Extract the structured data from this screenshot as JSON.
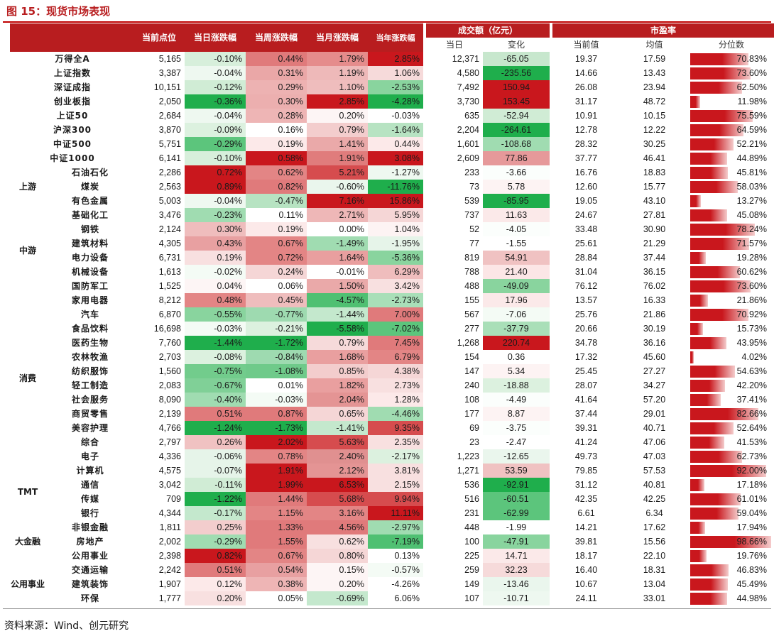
{
  "title": "图 15：现货市场表现",
  "source": "资料来源：Wind、创元研究",
  "headers": {
    "close": "当前点位",
    "day": "当日涨跌幅",
    "week": "当周涨跌幅",
    "month": "当月涨跌幅",
    "ytd": "当年涨跌幅",
    "turnover": "成交额（亿元）",
    "turnover_today": "当日",
    "turnover_change": "变化",
    "pe": "市盈率",
    "pe_current": "当前值",
    "pe_mean": "均值",
    "pe_pct": "分位数"
  },
  "groups": [
    {
      "label": "上游",
      "start": 8,
      "span": 3
    },
    {
      "label": "中游",
      "start": 11,
      "span": 6
    },
    {
      "label": "消费",
      "start": 17,
      "span": 12
    },
    {
      "label": "TMT",
      "start": 29,
      "span": 4
    },
    {
      "label": "大金融",
      "start": 33,
      "span": 3
    },
    {
      "label": "公用事业",
      "start": 36,
      "span": 4
    }
  ],
  "rows": [
    {
      "name": "万得全A",
      "close": "5,165",
      "day": "-0.10%",
      "week": "0.44%",
      "month": "1.79%",
      "ytd": "2.85%",
      "turnover": "12,371",
      "change": "-65.05",
      "pe": "19.37",
      "pe_mean": "17.59",
      "pct": "70.83%",
      "pct_value": 70.83,
      "colors": {
        "day": "#d7efdb",
        "week": "#e07a7b",
        "month": "#e58c8c",
        "ytd": "#c9171d",
        "change": "#c7e7cd"
      }
    },
    {
      "name": "上证指数",
      "close": "3,387",
      "day": "-0.04%",
      "week": "0.31%",
      "month": "1.19%",
      "ytd": "1.06%",
      "turnover": "4,580",
      "change": "-235.56",
      "pe": "14.66",
      "pe_mean": "13.43",
      "pct": "73.60%",
      "pct_value": 73.6,
      "colors": {
        "day": "#eef8f0",
        "week": "#eaa7a7",
        "month": "#eeb9b9",
        "ytd": "#f6dada",
        "change": "#1fae4c"
      }
    },
    {
      "name": "深证成指",
      "close": "10,151",
      "day": "-0.12%",
      "week": "0.29%",
      "month": "1.10%",
      "ytd": "-2.53%",
      "turnover": "7,492",
      "change": "150.94",
      "pe": "26.08",
      "pe_mean": "23.94",
      "pct": "62.50%",
      "pct_value": 62.5,
      "colors": {
        "day": "#d0ecd5",
        "week": "#edb2b2",
        "month": "#efbdbd",
        "ytd": "#89d49e",
        "change": "#c9171d"
      }
    },
    {
      "name": "创业板指",
      "close": "2,050",
      "day": "-0.36%",
      "week": "0.30%",
      "month": "2.85%",
      "ytd": "-4.28%",
      "turnover": "3,730",
      "change": "153.45",
      "pe": "31.17",
      "pe_mean": "48.72",
      "pct": "11.98%",
      "pct_value": 11.98,
      "colors": {
        "day": "#1fae4c",
        "week": "#ecafaf",
        "month": "#c9171d",
        "ytd": "#1fae4c",
        "change": "#c9171d"
      }
    },
    {
      "name": "上证50",
      "close": "2,684",
      "day": "-0.04%",
      "week": "0.28%",
      "month": "0.20%",
      "ytd": "-0.03%",
      "turnover": "635",
      "change": "-52.94",
      "pe": "10.91",
      "pe_mean": "10.15",
      "pct": "75.59%",
      "pct_value": 75.59,
      "colors": {
        "day": "#eef8f0",
        "week": "#eeb5b5",
        "month": "#fdf5f5",
        "ytd": "#ffffff",
        "change": "#d0ecd5"
      }
    },
    {
      "name": "沪深300",
      "close": "3,870",
      "day": "-0.09%",
      "week": "0.16%",
      "month": "0.79%",
      "ytd": "-1.64%",
      "turnover": "2,204",
      "change": "-264.61",
      "pe": "12.78",
      "pe_mean": "12.22",
      "pct": "64.59%",
      "pct_value": 64.59,
      "colors": {
        "day": "#dcf1df",
        "week": "#ffffff",
        "month": "#f3cdcd",
        "ytd": "#b7e3c2",
        "change": "#1fae4c"
      }
    },
    {
      "name": "中证500",
      "close": "5,751",
      "day": "-0.29%",
      "week": "0.19%",
      "month": "1.41%",
      "ytd": "0.44%",
      "turnover": "1,601",
      "change": "-108.68",
      "pe": "28.32",
      "pe_mean": "30.25",
      "pct": "52.21%",
      "pct_value": 52.21,
      "colors": {
        "day": "#5cc57c",
        "week": "#fce9e9",
        "month": "#eaa9a9",
        "ytd": "#fce9e9",
        "change": "#a0dcb1"
      }
    },
    {
      "name": "中证1000",
      "close": "6,141",
      "day": "-0.10%",
      "week": "0.58%",
      "month": "1.91%",
      "ytd": "3.08%",
      "turnover": "2,609",
      "change": "77.86",
      "pe": "37.77",
      "pe_mean": "46.41",
      "pct": "44.89%",
      "pct_value": 44.89,
      "colors": {
        "day": "#d7efdb",
        "week": "#c9171d",
        "month": "#e07c7c",
        "ytd": "#c9171d",
        "change": "#e6999a"
      }
    },
    {
      "name": "石油石化",
      "close": "2,286",
      "day": "0.72%",
      "week": "0.62%",
      "month": "5.21%",
      "ytd": "-1.27%",
      "turnover": "233",
      "change": "-3.66",
      "pe": "16.76",
      "pe_mean": "18.83",
      "pct": "45.81%",
      "pct_value": 45.81,
      "colors": {
        "day": "#c9171d",
        "week": "#e38585",
        "month": "#d64c4e",
        "ytd": "#eef8f0",
        "change": "#fbfefc"
      }
    },
    {
      "name": "煤炭",
      "close": "2,563",
      "day": "0.89%",
      "week": "0.82%",
      "month": "-0.60%",
      "ytd": "-11.76%",
      "turnover": "73",
      "change": "5.78",
      "pe": "12.60",
      "pe_mean": "15.77",
      "pct": "58.03%",
      "pct_value": 58.03,
      "colors": {
        "day": "#c9171d",
        "week": "#e07a7b",
        "month": "#eaf6ed",
        "ytd": "#1fae4c",
        "change": "#fdf3f3"
      }
    },
    {
      "name": "有色金属",
      "close": "5,003",
      "day": "-0.04%",
      "week": "-0.47%",
      "month": "7.16%",
      "ytd": "15.86%",
      "turnover": "539",
      "change": "-85.95",
      "pe": "19.05",
      "pe_mean": "43.10",
      "pct": "13.27%",
      "pct_value": 13.27,
      "colors": {
        "day": "#eef8f0",
        "week": "#b7e3c2",
        "month": "#c9171d",
        "ytd": "#c9171d",
        "change": "#1fae4c"
      }
    },
    {
      "name": "基础化工",
      "close": "3,476",
      "day": "-0.23%",
      "week": "0.11%",
      "month": "2.71%",
      "ytd": "5.95%",
      "turnover": "737",
      "change": "11.63",
      "pe": "24.67",
      "pe_mean": "27.81",
      "pct": "45.08%",
      "pct_value": 45.08,
      "colors": {
        "day": "#a0dcb1",
        "week": "#ffffff",
        "month": "#eeb7b7",
        "ytd": "#f5d6d6",
        "change": "#fbe9e9"
      }
    },
    {
      "name": "钢铁",
      "close": "2,124",
      "day": "0.30%",
      "week": "0.19%",
      "month": "0.00%",
      "ytd": "1.04%",
      "turnover": "52",
      "change": "-4.05",
      "pe": "33.48",
      "pe_mean": "30.90",
      "pct": "78.24%",
      "pct_value": 78.24,
      "colors": {
        "day": "#efbdbd",
        "week": "#fce9e9",
        "month": "#ffffff",
        "ytd": "#fdf3f3",
        "change": "#fbfefc"
      }
    },
    {
      "name": "建筑材料",
      "close": "4,305",
      "day": "0.43%",
      "week": "0.67%",
      "month": "-1.49%",
      "ytd": "-1.95%",
      "turnover": "77",
      "change": "-1.55",
      "pe": "25.61",
      "pe_mean": "21.29",
      "pct": "71.57%",
      "pct_value": 71.57,
      "colors": {
        "day": "#e8a0a1",
        "week": "#e38585",
        "month": "#a0dcb1",
        "ytd": "#e6f4e9",
        "change": "#ffffff"
      }
    },
    {
      "name": "电力设备",
      "close": "6,731",
      "day": "0.19%",
      "week": "0.72%",
      "month": "1.64%",
      "ytd": "-5.36%",
      "turnover": "819",
      "change": "54.91",
      "pe": "28.84",
      "pe_mean": "37.44",
      "pct": "19.28%",
      "pct_value": 19.28,
      "colors": {
        "day": "#f8e0e0",
        "week": "#e38585",
        "month": "#e99f9f",
        "ytd": "#89d49e",
        "change": "#f0c2c2"
      }
    },
    {
      "name": "机械设备",
      "close": "1,613",
      "day": "-0.02%",
      "week": "0.24%",
      "month": "-0.01%",
      "ytd": "6.29%",
      "turnover": "788",
      "change": "21.40",
      "pe": "31.04",
      "pe_mean": "36.15",
      "pct": "60.62%",
      "pct_value": 60.62,
      "colors": {
        "day": "#f4fbf5",
        "week": "#f5d6d6",
        "month": "#ffffff",
        "ytd": "#efbdbd",
        "change": "#fce6e6"
      }
    },
    {
      "name": "国防军工",
      "close": "1,525",
      "day": "0.04%",
      "week": "0.06%",
      "month": "1.50%",
      "ytd": "3.42%",
      "turnover": "488",
      "change": "-49.09",
      "pe": "76.12",
      "pe_mean": "76.02",
      "pct": "73.60%",
      "pct_value": 73.6,
      "colors": {
        "day": "#fdf5f5",
        "week": "#ffffff",
        "month": "#eaa9a9",
        "ytd": "#f8e0e0",
        "change": "#89d49e"
      }
    },
    {
      "name": "家用电器",
      "close": "8,212",
      "day": "0.48%",
      "week": "0.45%",
      "month": "-4.57%",
      "ytd": "-2.73%",
      "turnover": "155",
      "change": "17.96",
      "pe": "13.57",
      "pe_mean": "16.33",
      "pct": "21.86%",
      "pct_value": 21.86,
      "colors": {
        "day": "#e38585",
        "week": "#efbdbd",
        "month": "#4fc072",
        "ytd": "#a9dfb8",
        "change": "#fbe9e9"
      }
    },
    {
      "name": "汽车",
      "close": "6,870",
      "day": "-0.55%",
      "week": "-0.77%",
      "month": "-1.44%",
      "ytd": "7.00%",
      "turnover": "567",
      "change": "-7.06",
      "pe": "25.76",
      "pe_mean": "21.86",
      "pct": "70.92%",
      "pct_value": 70.92,
      "colors": {
        "day": "#89d49e",
        "week": "#9edab0",
        "month": "#c4e8cd",
        "ytd": "#e07a7b",
        "change": "#f4fbf5"
      }
    },
    {
      "name": "食品饮料",
      "close": "16,698",
      "day": "-0.03%",
      "week": "-0.21%",
      "month": "-5.58%",
      "ytd": "-7.02%",
      "turnover": "277",
      "change": "-37.79",
      "pe": "20.66",
      "pe_mean": "30.19",
      "pct": "15.73%",
      "pct_value": 15.73,
      "colors": {
        "day": "#f4fbf5",
        "week": "#dcf1df",
        "month": "#1fae4c",
        "ytd": "#5cc57c",
        "change": "#a9dfb8"
      }
    },
    {
      "name": "医药生物",
      "close": "7,760",
      "day": "-1.44%",
      "week": "-1.72%",
      "month": "0.79%",
      "ytd": "7.45%",
      "turnover": "1,268",
      "change": "220.74",
      "pe": "34.78",
      "pe_mean": "36.16",
      "pct": "43.95%",
      "pct_value": 43.95,
      "colors": {
        "day": "#1fae4c",
        "week": "#1fae4c",
        "month": "#f6dada",
        "ytd": "#e07a7b",
        "change": "#c9171d"
      }
    },
    {
      "name": "农林牧渔",
      "close": "2,703",
      "day": "-0.08%",
      "week": "-0.84%",
      "month": "1.68%",
      "ytd": "6.79%",
      "turnover": "154",
      "change": "0.36",
      "pe": "17.32",
      "pe_mean": "45.60",
      "pct": "4.02%",
      "pct_value": 4.02,
      "colors": {
        "day": "#dcf1df",
        "week": "#9edab0",
        "month": "#e99f9f",
        "ytd": "#e38585",
        "change": "#ffffff"
      }
    },
    {
      "name": "纺织服饰",
      "close": "1,560",
      "day": "-0.75%",
      "week": "-1.08%",
      "month": "0.85%",
      "ytd": "4.38%",
      "turnover": "147",
      "change": "5.34",
      "pe": "25.45",
      "pe_mean": "27.27",
      "pct": "54.63%",
      "pct_value": 54.63,
      "colors": {
        "day": "#72cc8c",
        "week": "#6fca8a",
        "month": "#f3cdcd",
        "ytd": "#f5d6d6",
        "change": "#fdf3f3"
      }
    },
    {
      "name": "轻工制造",
      "close": "2,083",
      "day": "-0.67%",
      "week": "0.01%",
      "month": "1.82%",
      "ytd": "2.73%",
      "turnover": "240",
      "change": "-18.88",
      "pe": "28.07",
      "pe_mean": "34.27",
      "pct": "42.20%",
      "pct_value": 42.2,
      "colors": {
        "day": "#80d097",
        "week": "#ffffff",
        "month": "#e99f9f",
        "ytd": "#f8e0e0",
        "change": "#dcf1df"
      }
    },
    {
      "name": "社会服务",
      "close": "8,090",
      "day": "-0.40%",
      "week": "-0.03%",
      "month": "2.04%",
      "ytd": "1.28%",
      "turnover": "108",
      "change": "-4.49",
      "pe": "41.64",
      "pe_mean": "57.20",
      "pct": "37.41%",
      "pct_value": 37.41,
      "colors": {
        "day": "#a0dcb1",
        "week": "#f4fbf5",
        "month": "#e49494",
        "ytd": "#fce9e9",
        "change": "#fbfefc"
      }
    },
    {
      "name": "商贸零售",
      "close": "2,139",
      "day": "0.51%",
      "week": "0.87%",
      "month": "0.65%",
      "ytd": "-4.46%",
      "turnover": "177",
      "change": "8.87",
      "pe": "37.44",
      "pe_mean": "29.01",
      "pct": "82.66%",
      "pct_value": 82.66,
      "colors": {
        "day": "#e07a7b",
        "week": "#e07a7b",
        "month": "#f5d6d6",
        "ytd": "#a0dcb1",
        "change": "#fdf3f3"
      }
    },
    {
      "name": "美容护理",
      "close": "4,766",
      "day": "-1.24%",
      "week": "-1.73%",
      "month": "-1.41%",
      "ytd": "9.35%",
      "turnover": "69",
      "change": "-3.75",
      "pe": "39.31",
      "pe_mean": "40.71",
      "pct": "52.64%",
      "pct_value": 52.64,
      "colors": {
        "day": "#1fae4c",
        "week": "#1fae4c",
        "month": "#c4e8cd",
        "ytd": "#d64c4e",
        "change": "#fbfefc"
      }
    },
    {
      "name": "综合",
      "close": "2,797",
      "day": "0.26%",
      "week": "2.02%",
      "month": "5.63%",
      "ytd": "2.35%",
      "turnover": "23",
      "change": "-2.47",
      "pe": "41.24",
      "pe_mean": "47.06",
      "pct": "41.53%",
      "pct_value": 41.53,
      "colors": {
        "day": "#f0c2c2",
        "week": "#c9171d",
        "month": "#d64c4e",
        "ytd": "#f8e0e0",
        "change": "#ffffff"
      }
    },
    {
      "name": "电子",
      "close": "4,336",
      "day": "-0.06%",
      "week": "0.78%",
      "month": "2.40%",
      "ytd": "-2.17%",
      "turnover": "1,223",
      "change": "-12.65",
      "pe": "49.73",
      "pe_mean": "47.03",
      "pct": "62.73%",
      "pct_value": 62.73,
      "colors": {
        "day": "#e6f4e9",
        "week": "#e38585",
        "month": "#e09090",
        "ytd": "#dcf1df",
        "change": "#eaf6ed"
      }
    },
    {
      "name": "计算机",
      "close": "4,575",
      "day": "-0.07%",
      "week": "1.91%",
      "month": "2.12%",
      "ytd": "3.81%",
      "turnover": "1,271",
      "change": "53.59",
      "pe": "79.85",
      "pe_mean": "57.53",
      "pct": "92.00%",
      "pct_value": 92.0,
      "colors": {
        "day": "#e6f4e9",
        "week": "#c9171d",
        "month": "#e49494",
        "ytd": "#f8e0e0",
        "change": "#f0c2c2"
      }
    },
    {
      "name": "通信",
      "close": "3,042",
      "day": "-0.11%",
      "week": "1.99%",
      "month": "6.53%",
      "ytd": "2.15%",
      "turnover": "536",
      "change": "-92.91",
      "pe": "31.12",
      "pe_mean": "40.81",
      "pct": "17.18%",
      "pct_value": 17.18,
      "colors": {
        "day": "#d0ecd5",
        "week": "#c9171d",
        "month": "#c9171d",
        "ytd": "#f8e0e0",
        "change": "#1fae4c"
      }
    },
    {
      "name": "传媒",
      "close": "709",
      "day": "-1.22%",
      "week": "1.44%",
      "month": "5.68%",
      "ytd": "9.94%",
      "turnover": "516",
      "change": "-60.51",
      "pe": "42.35",
      "pe_mean": "42.25",
      "pct": "61.01%",
      "pct_value": 61.01,
      "colors": {
        "day": "#1fae4c",
        "week": "#e07a7b",
        "month": "#d64c4e",
        "ytd": "#d64c4e",
        "change": "#5cc57c"
      }
    },
    {
      "name": "银行",
      "close": "4,344",
      "day": "-0.17%",
      "week": "1.15%",
      "month": "3.16%",
      "ytd": "11.11%",
      "turnover": "231",
      "change": "-62.99",
      "pe": "6.61",
      "pe_mean": "6.34",
      "pct": "59.04%",
      "pct_value": 59.04,
      "colors": {
        "day": "#c4e8cd",
        "week": "#e38585",
        "month": "#e38585",
        "ytd": "#c9171d",
        "change": "#5cc57c"
      }
    },
    {
      "name": "非银金融",
      "close": "1,811",
      "day": "0.25%",
      "week": "1.33%",
      "month": "4.56%",
      "ytd": "-2.97%",
      "turnover": "448",
      "change": "-1.99",
      "pe": "14.21",
      "pe_mean": "17.62",
      "pct": "17.94%",
      "pct_value": 17.94,
      "colors": {
        "day": "#f3cdcd",
        "week": "#e07a7b",
        "month": "#e07a7b",
        "ytd": "#a0dcb1",
        "change": "#ffffff"
      }
    },
    {
      "name": "房地产",
      "close": "2,002",
      "day": "-0.29%",
      "week": "1.55%",
      "month": "0.62%",
      "ytd": "-7.19%",
      "turnover": "100",
      "change": "-47.91",
      "pe": "39.81",
      "pe_mean": "15.56",
      "pct": "98.66%",
      "pct_value": 98.66,
      "colors": {
        "day": "#a0dcb1",
        "week": "#e07a7b",
        "month": "#f8e0e0",
        "ytd": "#4fc072",
        "change": "#89d49e"
      }
    },
    {
      "name": "公用事业",
      "close": "2,398",
      "day": "0.82%",
      "week": "0.67%",
      "month": "0.80%",
      "ytd": "0.13%",
      "turnover": "225",
      "change": "14.71",
      "pe": "18.17",
      "pe_mean": "22.10",
      "pct": "19.76%",
      "pct_value": 19.76,
      "colors": {
        "day": "#c9171d",
        "week": "#e38585",
        "month": "#f5d6d6",
        "ytd": "#ffffff",
        "change": "#fbe9e9"
      }
    },
    {
      "name": "交通运输",
      "close": "2,242",
      "day": "0.51%",
      "week": "0.54%",
      "month": "0.15%",
      "ytd": "-0.57%",
      "turnover": "259",
      "change": "32.23",
      "pe": "16.40",
      "pe_mean": "18.31",
      "pct": "46.83%",
      "pct_value": 46.83,
      "colors": {
        "day": "#e07a7b",
        "week": "#e8a0a1",
        "month": "#fdf5f5",
        "ytd": "#f4fbf5",
        "change": "#f6dada"
      }
    },
    {
      "name": "建筑装饰",
      "close": "1,907",
      "day": "0.12%",
      "week": "0.38%",
      "month": "0.20%",
      "ytd": "-4.26%",
      "turnover": "149",
      "change": "-13.46",
      "pe": "10.67",
      "pe_mean": "13.04",
      "pct": "45.49%",
      "pct_value": 45.49,
      "colors": {
        "day": "#fce9e9",
        "week": "#eeb5b5",
        "month": "#fdf5f5",
        "ytd": "#ffffff",
        "change": "#eaf6ed"
      }
    },
    {
      "name": "环保",
      "close": "1,777",
      "day": "0.20%",
      "week": "0.05%",
      "month": "-0.69%",
      "ytd": "6.06%",
      "turnover": "107",
      "change": "-10.71",
      "pe": "24.11",
      "pe_mean": "33.01",
      "pct": "44.98%",
      "pct_value": 44.98,
      "colors": {
        "day": "#f8e0e0",
        "week": "#ffffff",
        "month": "#c4e8cd",
        "ytd": "#ffffff",
        "change": "#eef8f0"
      }
    }
  ],
  "bar_color": "#c9171d"
}
